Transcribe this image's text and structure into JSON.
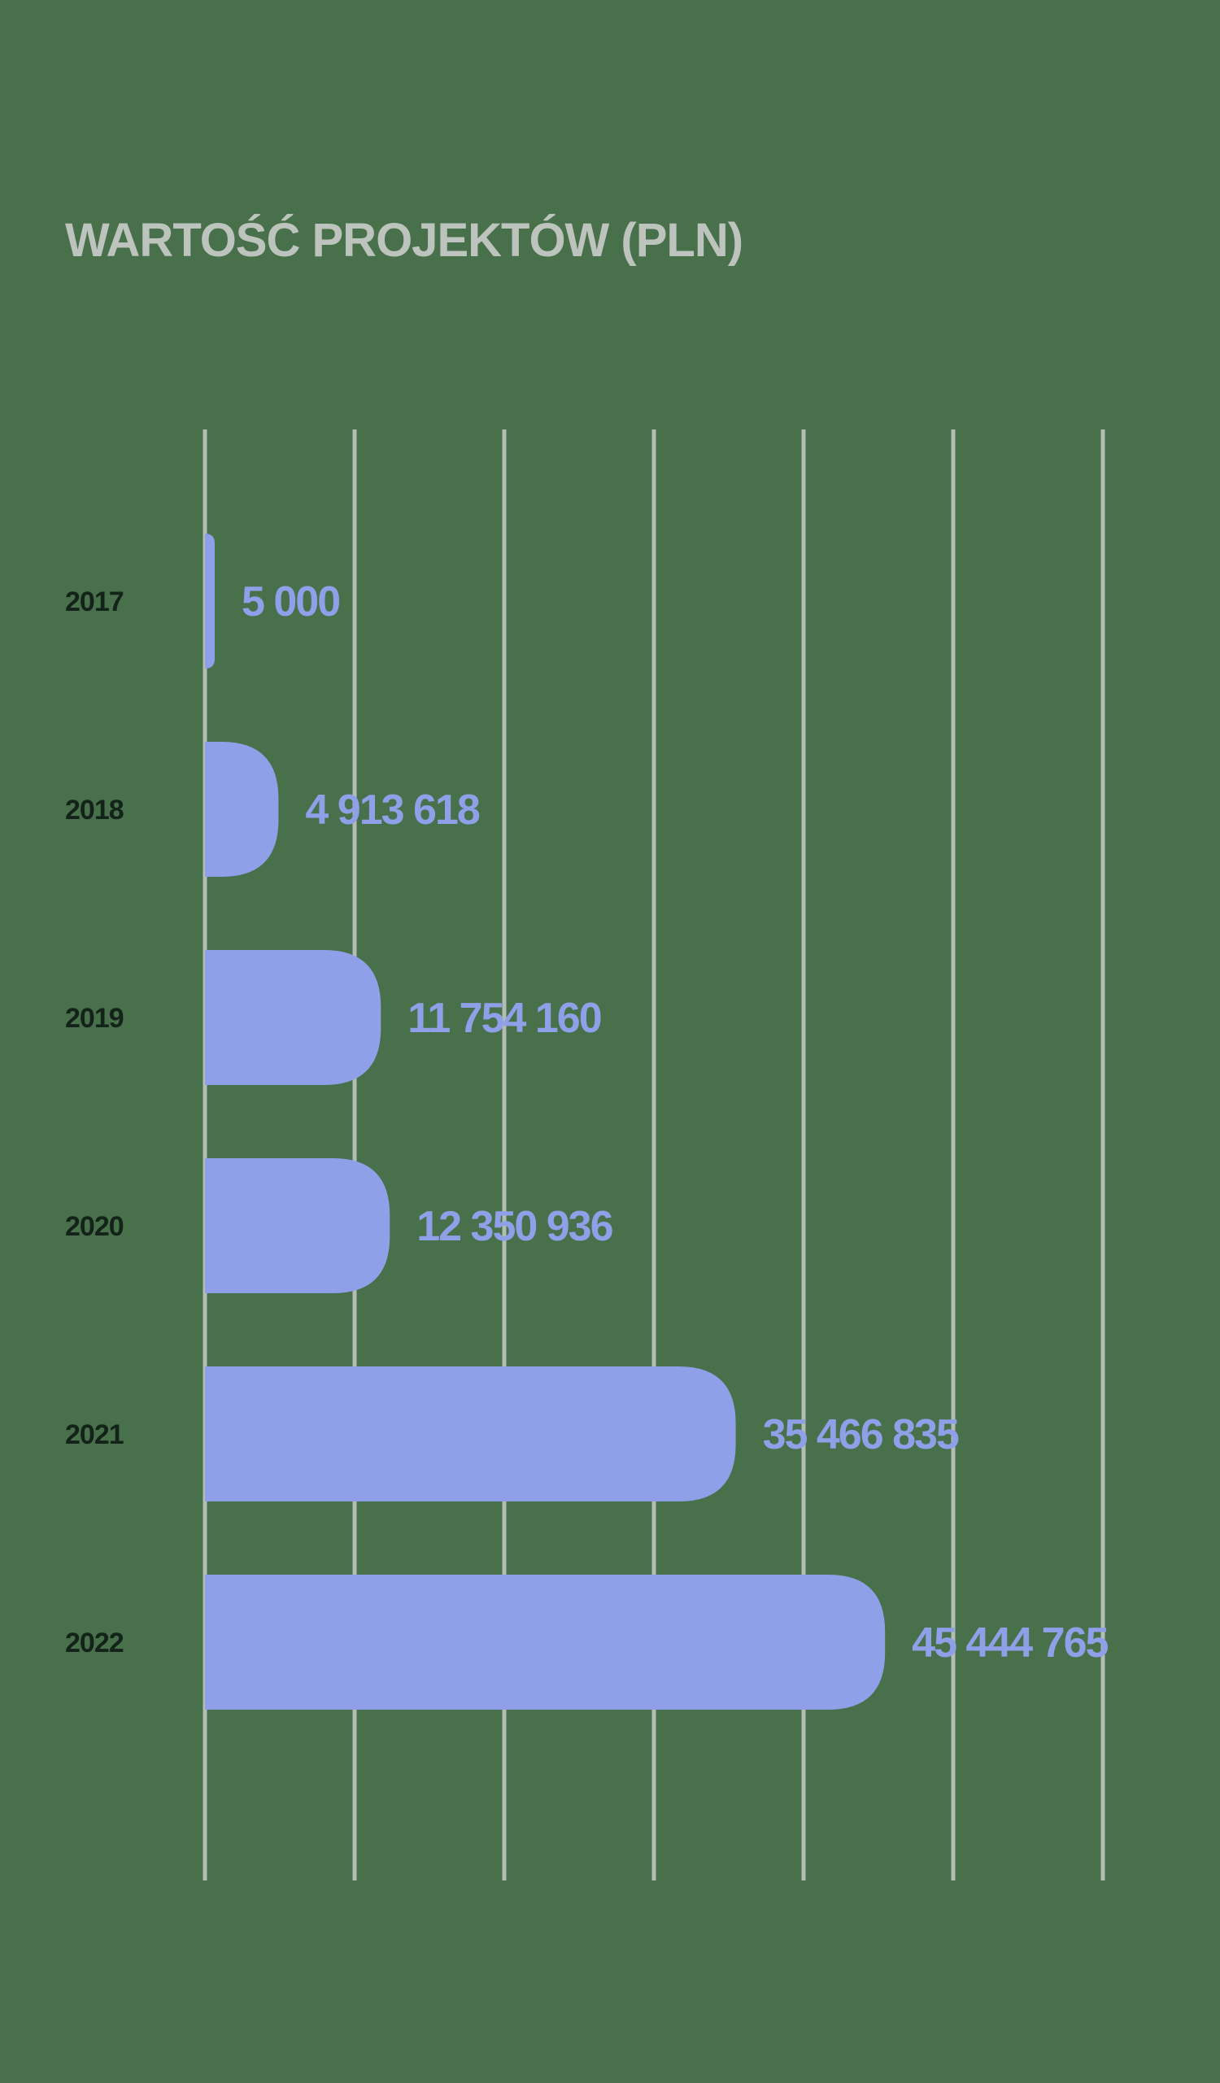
{
  "colors": {
    "background": "#48704a",
    "bar": "#8fa0e8",
    "grid": "#b4bdb4",
    "title": "#bdc3bd",
    "value_label": "#8fa0e8",
    "category_label": "#13231a"
  },
  "chart_data": {
    "type": "bar",
    "orientation": "horizontal",
    "title": "WARTOŚĆ PROJEKTÓW (PLN)",
    "xlabel": "",
    "ylabel": "",
    "grid": true,
    "xlim": [
      0,
      60000000
    ],
    "categories": [
      "2017",
      "2018",
      "2019",
      "2020",
      "2021",
      "2022"
    ],
    "values": [
      5000,
      4913618,
      11754160,
      12350936,
      35466835,
      45444765
    ],
    "value_labels": [
      "5 000",
      "4 913 618",
      "11 754 160",
      "12 350 936",
      "35 466 835",
      "45 444 765"
    ]
  }
}
